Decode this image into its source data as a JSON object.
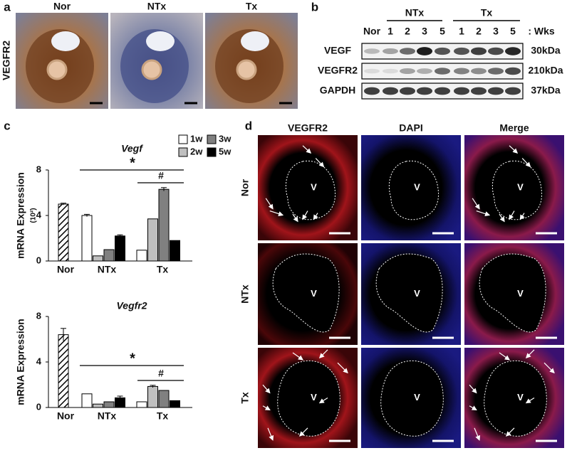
{
  "panel_a": {
    "label": "a",
    "row_label": "VEGFR2",
    "columns": [
      "Nor",
      "NTx",
      "Tx"
    ]
  },
  "panel_b": {
    "label": "b",
    "groups": [
      "NTx",
      "Tx"
    ],
    "lanes": [
      "Nor",
      "1",
      "2",
      "3",
      "5",
      "1",
      "2",
      "3",
      "5"
    ],
    "unit": ": Wks",
    "rows": [
      {
        "protein": "VEGF",
        "size": "30kDa"
      },
      {
        "protein": "VEGFR2",
        "size": "210kDa"
      },
      {
        "protein": "GAPDH",
        "size": "37kDa"
      }
    ]
  },
  "panel_c": {
    "label": "c"
  },
  "chart_data": [
    {
      "type": "bar",
      "title": "Vegf",
      "y_label": "mRNA Expression",
      "y_unit": "(10²)",
      "categories": [
        "Nor",
        "NTx",
        "Tx"
      ],
      "control": {
        "value": 5.0,
        "error": 0.08
      },
      "series": [
        {
          "name": "1w",
          "color": "#ffffff",
          "values": [
            null,
            4.0,
            0.95
          ],
          "errors": [
            null,
            0.1,
            null
          ]
        },
        {
          "name": "2w",
          "color": "#bfbfbf",
          "values": [
            null,
            0.45,
            3.7
          ],
          "errors": [
            null,
            null,
            null
          ]
        },
        {
          "name": "3w",
          "color": "#808080",
          "values": [
            null,
            1.0,
            6.3
          ],
          "errors": [
            null,
            null,
            0.15
          ]
        },
        {
          "name": "5w",
          "color": "#000000",
          "values": [
            null,
            2.2,
            1.8
          ],
          "errors": [
            null,
            0.1,
            null
          ]
        }
      ],
      "ylim": [
        0,
        8
      ],
      "yticks": [
        0,
        4,
        8
      ],
      "annotations": [
        "*",
        "#"
      ],
      "legend": true
    },
    {
      "type": "bar",
      "title": "Vegfr2",
      "y_label": "mRNA Expression",
      "categories": [
        "Nor",
        "NTx",
        "Tx"
      ],
      "control": {
        "value": 6.4,
        "error": 0.55
      },
      "series": [
        {
          "name": "1w",
          "color": "#ffffff",
          "values": [
            null,
            1.2,
            0.5
          ],
          "errors": [
            null,
            null,
            null
          ]
        },
        {
          "name": "2w",
          "color": "#bfbfbf",
          "values": [
            null,
            0.3,
            1.85
          ],
          "errors": [
            null,
            null,
            0.1
          ]
        },
        {
          "name": "3w",
          "color": "#808080",
          "values": [
            null,
            0.5,
            1.5
          ],
          "errors": [
            null,
            null,
            null
          ]
        },
        {
          "name": "5w",
          "color": "#000000",
          "values": [
            null,
            0.85,
            0.6
          ],
          "errors": [
            null,
            0.15,
            null
          ]
        }
      ],
      "ylim": [
        0,
        8
      ],
      "yticks": [
        0,
        4,
        8
      ],
      "annotations": [
        "*",
        "#"
      ],
      "legend": false
    }
  ],
  "panel_d": {
    "label": "d",
    "columns": [
      "VEGFR2",
      "DAPI",
      "Merge"
    ],
    "rows": [
      "Nor",
      "NTx",
      "Tx"
    ],
    "vessel_label": "V"
  }
}
